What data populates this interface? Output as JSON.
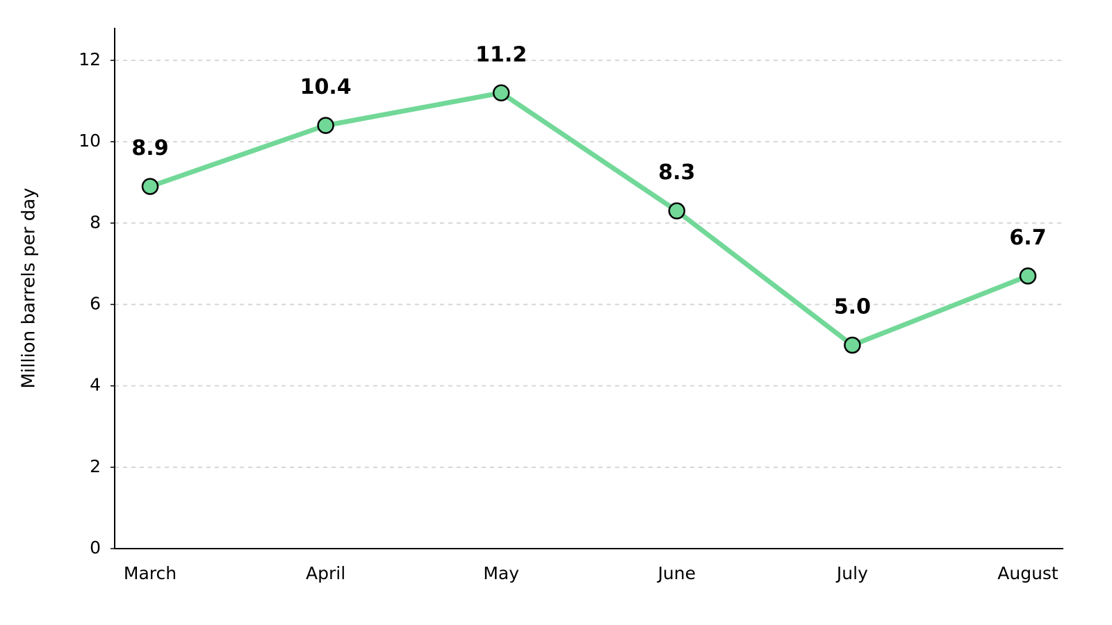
{
  "chart_data": {
    "type": "line",
    "y_label": "Million barrels per day",
    "categories": [
      "March",
      "April",
      "May",
      "June",
      "July",
      "August"
    ],
    "values": [
      8.9,
      10.4,
      11.2,
      8.3,
      5.0,
      6.7
    ],
    "value_labels": [
      "8.9",
      "10.4",
      "11.2",
      "8.3",
      "5.0",
      "6.7"
    ],
    "color": "#72d898",
    "ylim": [
      0,
      12.8
    ],
    "yticks": [
      0,
      2,
      4,
      6,
      8,
      10,
      12
    ],
    "grid": true
  }
}
